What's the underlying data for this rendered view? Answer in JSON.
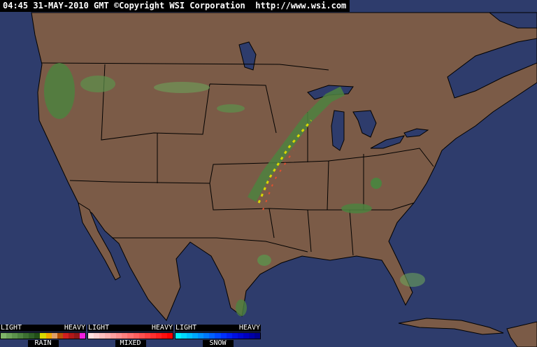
{
  "header": {
    "text": "04:45 31-MAY-2010 GMT ©Copyright WSI Corporation  http://www.wsi.com"
  },
  "colors": {
    "ocean": "#2e3c6c",
    "land": "#7b5b47",
    "borders": "#000000",
    "precip_light": "#5c924c"
  },
  "legends": [
    {
      "name": "RAIN",
      "light": "LIGHT",
      "heavy": "HEAVY",
      "colors": [
        "#7fb56a",
        "#6da25a",
        "#5c924c",
        "#4d8240",
        "#3d7032",
        "#2f6027",
        "#225018",
        "#d8d800",
        "#f0a800",
        "#e0a068",
        "#b85008",
        "#d02020",
        "#b01818",
        "#901818",
        "#f020e0"
      ]
    },
    {
      "name": "MIXED",
      "light": "LIGHT",
      "heavy": "HEAVY",
      "colors": [
        "#ffe0e0",
        "#ffd0d0",
        "#ffc0c0",
        "#ffb0b0",
        "#ffa0a0",
        "#ff9090",
        "#ff8080",
        "#ff7070",
        "#ff6060",
        "#ff5050",
        "#ff4040",
        "#ff3030",
        "#ff2020",
        "#ff1010",
        "#ff0000"
      ]
    },
    {
      "name": "SNOW",
      "light": "LIGHT",
      "heavy": "HEAVY",
      "colors": [
        "#00f0ff",
        "#00d8ff",
        "#00c0ff",
        "#00a8ff",
        "#0090ff",
        "#0078ff",
        "#0060ff",
        "#0048ff",
        "#0030ff",
        "#0020f0",
        "#0010e0",
        "#0008d0",
        "#0000c0",
        "#0000a8",
        "#000090"
      ]
    }
  ]
}
